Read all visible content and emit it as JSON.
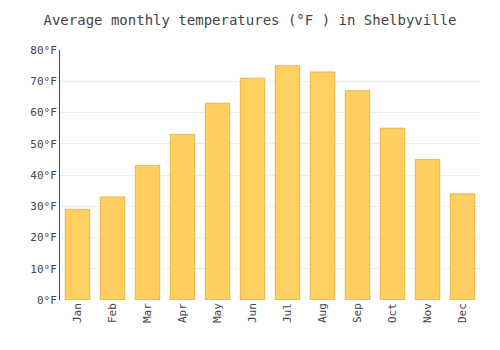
{
  "chart_data": {
    "type": "bar",
    "title": "Average monthly temperatures (°F ) in Shelbyville",
    "categories": [
      "Jan",
      "Feb",
      "Mar",
      "Apr",
      "May",
      "Jun",
      "Jul",
      "Aug",
      "Sep",
      "Oct",
      "Nov",
      "Dec"
    ],
    "values": [
      29,
      33,
      43,
      53,
      63,
      71,
      75,
      73,
      67,
      55,
      45,
      34
    ],
    "color": "#FFD060",
    "ylim": [
      0,
      80
    ],
    "yticks": [
      {
        "value": 0,
        "label": "0°F"
      },
      {
        "value": 10,
        "label": "10°F"
      },
      {
        "value": 20,
        "label": "20°F"
      },
      {
        "value": 30,
        "label": "30°F"
      },
      {
        "value": 40,
        "label": "40°F"
      },
      {
        "value": 50,
        "label": "50°F"
      },
      {
        "value": 60,
        "label": "60°F"
      },
      {
        "value": 70,
        "label": "70°F"
      },
      {
        "value": 80,
        "label": "80°F"
      }
    ],
    "grid": true
  }
}
